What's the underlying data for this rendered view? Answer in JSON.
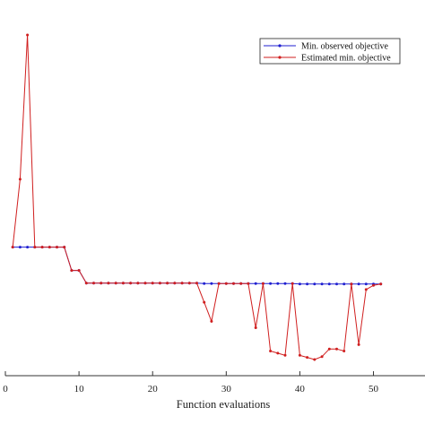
{
  "chart_data": {
    "type": "line",
    "title": "",
    "xlabel": "Function evaluations",
    "ylabel": "",
    "xlim": [
      0,
      57
    ],
    "ylim": [
      -9.0,
      0.5
    ],
    "x_ticks": [
      0,
      10,
      20,
      30,
      40,
      50
    ],
    "grid": false,
    "legend_position": "top-right",
    "series": [
      {
        "name": "Min. observed objective",
        "color": "#1f1fd0",
        "marker": "point",
        "x": [
          1,
          2,
          3,
          4,
          5,
          6,
          7,
          8,
          9,
          10,
          11,
          12,
          13,
          14,
          15,
          16,
          17,
          18,
          19,
          20,
          21,
          22,
          23,
          24,
          25,
          26,
          27,
          28,
          29,
          30,
          31,
          32,
          33,
          34,
          35,
          36,
          37,
          38,
          39,
          40,
          41,
          42,
          43,
          44,
          45,
          46,
          47,
          48,
          49,
          50,
          51
        ],
        "y": [
          -5.0,
          -5.0,
          -5.0,
          -5.0,
          -5.0,
          -5.0,
          -5.0,
          -5.0,
          -5.55,
          -5.55,
          -5.85,
          -5.85,
          -5.85,
          -5.85,
          -5.85,
          -5.85,
          -5.85,
          -5.85,
          -5.85,
          -5.85,
          -5.85,
          -5.85,
          -5.85,
          -5.85,
          -5.85,
          -5.85,
          -5.86,
          -5.86,
          -5.86,
          -5.86,
          -5.86,
          -5.86,
          -5.86,
          -5.86,
          -5.86,
          -5.86,
          -5.86,
          -5.86,
          -5.86,
          -5.87,
          -5.87,
          -5.87,
          -5.87,
          -5.87,
          -5.87,
          -5.87,
          -5.87,
          -5.87,
          -5.87,
          -5.87,
          -5.87
        ]
      },
      {
        "name": "Estimated min. objective",
        "color": "#d01f1f",
        "marker": "point",
        "x": [
          1,
          2,
          3,
          4,
          5,
          6,
          7,
          8,
          9,
          10,
          11,
          12,
          13,
          14,
          15,
          16,
          17,
          18,
          19,
          20,
          21,
          22,
          23,
          24,
          25,
          26,
          27,
          28,
          29,
          30,
          31,
          32,
          33,
          34,
          35,
          36,
          37,
          38,
          39,
          40,
          41,
          42,
          43,
          44,
          45,
          46,
          47,
          48,
          49,
          50,
          51
        ],
        "y": [
          -5.0,
          -3.4,
          0.0,
          -5.0,
          -5.0,
          -5.0,
          -5.0,
          -5.0,
          -5.55,
          -5.55,
          -5.85,
          -5.85,
          -5.85,
          -5.85,
          -5.85,
          -5.85,
          -5.85,
          -5.85,
          -5.85,
          -5.85,
          -5.85,
          -5.85,
          -5.85,
          -5.85,
          -5.85,
          -5.85,
          -6.3,
          -6.75,
          -5.86,
          -5.86,
          -5.86,
          -5.86,
          -5.86,
          -6.9,
          -5.86,
          -7.45,
          -7.5,
          -7.55,
          -5.86,
          -7.55,
          -7.6,
          -7.65,
          -7.58,
          -7.4,
          -7.4,
          -7.45,
          -5.87,
          -7.3,
          -6.0,
          -5.9,
          -5.87
        ]
      }
    ]
  }
}
